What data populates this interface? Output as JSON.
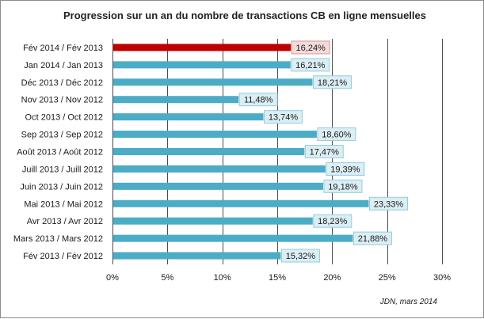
{
  "chart_data": {
    "type": "bar",
    "orientation": "horizontal",
    "title": "Progression sur un an du nombre de transactions CB en ligne mensuelles",
    "categories": [
      "Fév 2014 / Fév 2013",
      "Jan 2014 / Jan 2013",
      "Déc 2013 / Déc 2012",
      "Nov 2013 / Nov 2012",
      "Oct 2013 / Oct 2012",
      "Sep 2013 / Sep 2012",
      "Août 2013 / Août 2012",
      "Juill 2013 / Juill 2012",
      "Juin 2013 / Juin 2012",
      "Mai 2013 / Mai 2012",
      "Avr 2013 / Avr 2012",
      "Mars 2013 / Mars 2012",
      "Fév 2013 / Fév 2012"
    ],
    "values": [
      16.24,
      16.21,
      18.21,
      11.48,
      13.74,
      18.6,
      17.47,
      19.39,
      19.18,
      23.33,
      18.23,
      21.88,
      15.32
    ],
    "data_labels": [
      "16,24%",
      "16,21%",
      "18,21%",
      "11,48%",
      "13,74%",
      "18,60%",
      "17,47%",
      "19,39%",
      "19,18%",
      "23,33%",
      "18,23%",
      "21,88%",
      "15,32%"
    ],
    "highlight_index": 0,
    "xlim": [
      0,
      30
    ],
    "xticks": [
      0,
      5,
      10,
      15,
      20,
      25,
      30
    ],
    "xtick_labels": [
      "0%",
      "5%",
      "10%",
      "15%",
      "20%",
      "25%",
      "30%"
    ],
    "xlabel": "",
    "ylabel": "",
    "grid": "vertical",
    "source": "JDN, mars 2014",
    "colors": {
      "bar": "#4bacc6",
      "bar_highlight": "#c00000",
      "label_box_fill": "#dbeef4",
      "label_box_border": "#93cddd",
      "label_box_fill_highlight": "#f2dcdb",
      "label_box_border_highlight": "#d99694",
      "grid": "#4d4d4d"
    }
  }
}
